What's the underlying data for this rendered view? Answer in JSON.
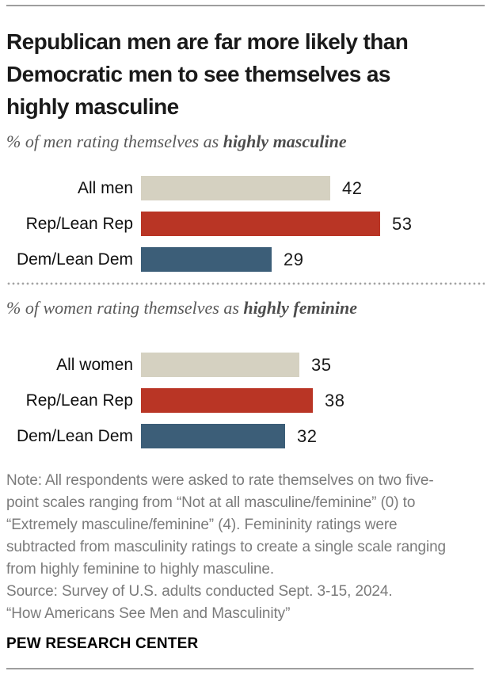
{
  "title_lines": [
    "Republican men are far more likely than",
    "Democratic men to see themselves as",
    "highly masculine"
  ],
  "sections": [
    {
      "subtitle_prefix": "% of men rating themselves as ",
      "subtitle_emphasis": "highly masculine"
    },
    {
      "subtitle_prefix": "% of women rating themselves as ",
      "subtitle_emphasis": "highly feminine"
    }
  ],
  "chart_data": [
    {
      "type": "bar",
      "orientation": "horizontal",
      "title": "% of men rating themselves as highly masculine",
      "categories": [
        "All men",
        "Rep/Lean Rep",
        "Dem/Lean Dem"
      ],
      "values": [
        42,
        53,
        29
      ],
      "colors": [
        "#d5d1c1",
        "#b93525",
        "#3c5e78"
      ],
      "xlim": [
        0,
        60
      ],
      "grid": false,
      "value_labels": true
    },
    {
      "type": "bar",
      "orientation": "horizontal",
      "title": "% of women rating themselves as highly feminine",
      "categories": [
        "All women",
        "Rep/Lean Rep",
        "Dem/Lean Dem"
      ],
      "values": [
        35,
        38,
        32
      ],
      "colors": [
        "#d5d1c1",
        "#b93525",
        "#3c5e78"
      ],
      "xlim": [
        0,
        60
      ],
      "grid": false,
      "value_labels": true
    }
  ],
  "note_lines": [
    "Note: All respondents were asked to rate themselves on two five-",
    "point scales ranging from “Not at all masculine/feminine” (0) to",
    "“Extremely masculine/feminine” (4). Femininity ratings were",
    "subtracted from masculinity ratings to create a single scale ranging",
    "from highly feminine to highly masculine.",
    "Source: Survey of U.S. adults conducted Sept. 3-15, 2024.",
    "“How Americans See Men and Masculinity”"
  ],
  "footer": {
    "brand": "PEW RESEARCH CENTER"
  },
  "accent_colors": {
    "tan": "#d5d1c1",
    "red": "#b93525",
    "blue": "#3c5e78"
  }
}
